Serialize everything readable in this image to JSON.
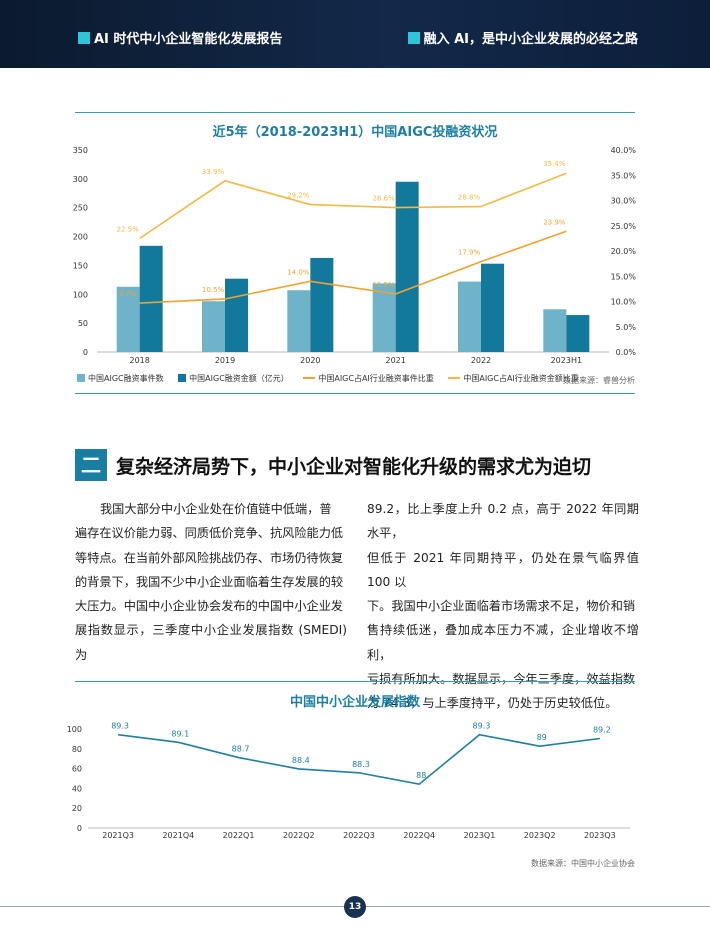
{
  "header": {
    "left_title": "AI 时代中小企业智能化发展报告",
    "right_title": "融入 AI，是中小企业发展的必经之路"
  },
  "chart1": {
    "title": "近5年（2018-2023H1）中国AIGC投融资状况",
    "legend": [
      "中国AIGC融资事件数",
      "中国AIGC融资金额（亿元）",
      "中国AIGC占AI行业融资事件比重",
      "中国AIGC占AI行业融资金额比重"
    ],
    "source": "数据来源：睿兽分析",
    "left_ticks": [
      "350",
      "300",
      "250",
      "200",
      "150",
      "100",
      "50",
      "0"
    ],
    "right_ticks": [
      "40.0%",
      "35.0%",
      "30.0%",
      "25.0%",
      "20.0%",
      "15.0%",
      "10.0%",
      "5.0%",
      "0.0%"
    ],
    "colors": {
      "events": "#6fb3c9",
      "amount": "#12799c",
      "event_ratio": "#f0a32f",
      "amount_ratio": "#f4b942"
    }
  },
  "chart2": {
    "title": "中国中小企业发展指数",
    "source": "数据来源：中国中小企业协会",
    "y_ticks": [
      "100",
      "80",
      "60",
      "40",
      "20",
      "0"
    ],
    "color": "#1d7fa5"
  },
  "chart_data": [
    {
      "type": "bar",
      "categories": [
        "2018",
        "2019",
        "2020",
        "2021",
        "2022",
        "2023H1"
      ],
      "series": [
        {
          "name": "中国AIGC融资事件数",
          "type": "bar",
          "axis": "left",
          "values": [
            113,
            88,
            107,
            119,
            122,
            74
          ]
        },
        {
          "name": "中国AIGC融资金额（亿元）",
          "type": "bar",
          "axis": "left",
          "values": [
            184,
            127,
            163,
            295,
            153,
            64
          ]
        },
        {
          "name": "中国AIGC占AI行业融资事件比重",
          "type": "line",
          "axis": "right",
          "values": [
            9.7,
            10.5,
            14.0,
            11.5,
            17.9,
            23.9
          ],
          "labels": [
            "9.7%",
            "10.5%",
            "14.0%",
            "11.5%",
            "17.9%",
            "23.9%"
          ]
        },
        {
          "name": "中国AIGC占AI行业融资金额比重",
          "type": "line",
          "axis": "right",
          "values": [
            22.5,
            33.9,
            29.2,
            28.6,
            28.8,
            35.4
          ],
          "labels": [
            "22.5%",
            "33.9%",
            "29.2%",
            "28.6%",
            "28.8%",
            "35.4%"
          ]
        }
      ],
      "ylim_left": [
        0,
        350
      ],
      "ylim_right": [
        0,
        40
      ],
      "title": "近5年（2018-2023H1）中国AIGC投融资状况"
    },
    {
      "type": "line",
      "categories": [
        "2021Q3",
        "2021Q4",
        "2022Q1",
        "2022Q2",
        "2022Q3",
        "2022Q4",
        "2023Q1",
        "2023Q2",
        "2023Q3"
      ],
      "series": [
        {
          "values": [
            89.3,
            89.1,
            88.7,
            88.4,
            88.3,
            88,
            89.3,
            89,
            89.2
          ],
          "labels": [
            "89.3",
            "89.1",
            "88.7",
            "88.4",
            "88.3",
            "88",
            "89.3",
            "89",
            "89.2"
          ]
        }
      ],
      "title": "中国中小企业发展指数"
    }
  ],
  "section": {
    "number": "二",
    "title": "复杂经济局势下，中小企业对智能化升级的需求尤为迫切"
  },
  "body": {
    "left_lines": [
      "我国大部分中小企业处在价值链中低端，普",
      "遍存在议价能力弱、同质低价竞争、抗风险能力低",
      "等特点。在当前外部风险挑战仍存、市场仍待恢复",
      "的背景下，我国不少中小企业面临着生存发展的较",
      "大压力。中国中小企业协会发布的中国中小企业发",
      "展指数显示，三季度中小企业发展指数 (SMEDI) 为"
    ],
    "right_lines": [
      "89.2，比上季度上升 0.2 点，高于 2022 年同期水平，",
      "但低于 2021 年同期持平，仍处在景气临界值 100 以",
      "下。我国中小企业面临着市场需求不足，物价和销",
      "售持续低迷，叠加成本压力不减，企业增收不增利，",
      "亏损有所加大。数据显示，今年三季度，效益指数",
      "为 74.3，与上季度持平，仍处于历史较低位。"
    ]
  },
  "page_number": "13"
}
